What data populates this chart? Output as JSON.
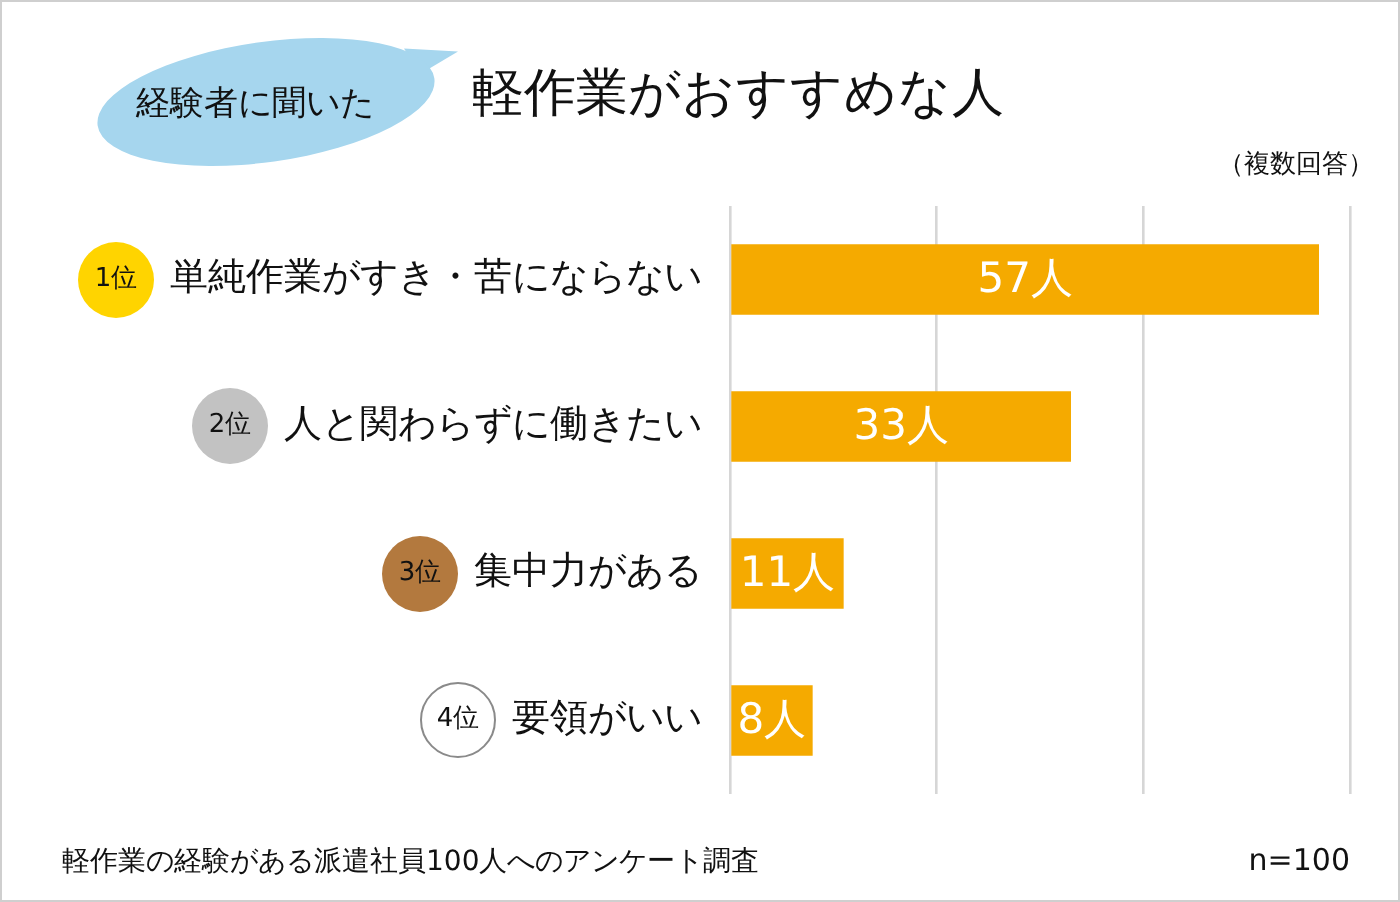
{
  "chart_data": {
    "type": "bar",
    "orientation": "horizontal",
    "title": "軽作業がおすすめな人",
    "subtitle": "経験者に聞いた",
    "categories": [
      "単純作業がすき・苦にならない",
      "人と関わらずに働きたい",
      "集中力がある",
      "要領がいい"
    ],
    "values": [
      57,
      33,
      11,
      8
    ],
    "value_labels": [
      "57人",
      "33人",
      "11人",
      "8人"
    ],
    "color": "#f5aa00",
    "xlim": [
      0,
      60
    ],
    "xticks": [
      {
        "value": 0,
        "label": null
      },
      {
        "value": 20,
        "label": null
      },
      {
        "value": 40,
        "label": null
      },
      {
        "value": 60,
        "label": null
      }
    ],
    "grid": "x",
    "tick_labels": "y",
    "annotations": [
      "1位",
      "2位",
      "3位",
      "4位",
      "（複数回答）",
      "軽作業の経験がある派遣社員100人へのアンケート調査",
      "n=100"
    ]
  }
}
